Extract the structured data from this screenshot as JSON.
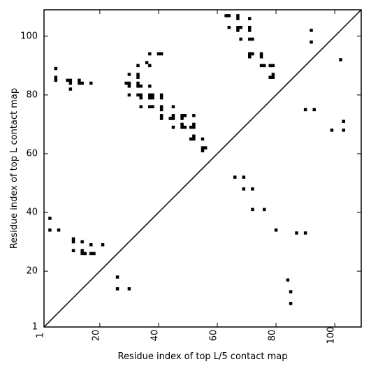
{
  "chart_data": {
    "type": "scatter",
    "title": "",
    "xlabel": "Residue index of top L/5 contact map",
    "ylabel": "Residue index of top L contact map",
    "xlim": [
      1,
      109
    ],
    "ylim": [
      1,
      109
    ],
    "x_ticks": [
      1,
      20,
      40,
      60,
      80,
      100
    ],
    "y_ticks": [
      1,
      20,
      40,
      60,
      80,
      100
    ],
    "x_tick_labels": [
      "1",
      "20",
      "40",
      "60",
      "80",
      "100"
    ],
    "y_tick_labels": [
      "1",
      "20",
      "40",
      "60",
      "80",
      "100"
    ],
    "grid": false,
    "marker": "square",
    "marker_color": "#000000",
    "diagonal_line": [
      [
        1,
        1
      ],
      [
        109,
        109
      ]
    ],
    "series": [
      {
        "label_region": "top_L_contacts_upper_left",
        "points": [
          [
            3,
            38
          ],
          [
            3,
            34
          ],
          [
            6,
            34
          ],
          [
            5,
            89
          ],
          [
            5,
            86
          ],
          [
            5,
            85
          ],
          [
            9,
            85
          ],
          [
            10,
            85
          ],
          [
            10,
            84
          ],
          [
            10,
            82
          ],
          [
            13,
            85
          ],
          [
            13,
            84
          ],
          [
            14,
            84
          ],
          [
            17,
            84
          ],
          [
            11,
            31
          ],
          [
            11,
            30
          ],
          [
            11,
            27
          ],
          [
            14,
            30
          ],
          [
            14,
            27
          ],
          [
            14,
            26
          ],
          [
            15,
            26
          ],
          [
            17,
            29
          ],
          [
            17,
            26
          ],
          [
            18,
            26
          ],
          [
            21,
            29
          ],
          [
            26,
            18
          ],
          [
            26,
            14
          ],
          [
            30,
            14
          ],
          [
            29,
            84
          ],
          [
            30,
            87
          ],
          [
            30,
            84
          ],
          [
            30,
            83
          ],
          [
            30,
            80
          ],
          [
            33,
            90
          ],
          [
            33,
            87
          ],
          [
            33,
            86
          ],
          [
            33,
            84
          ],
          [
            33,
            83
          ],
          [
            33,
            80
          ],
          [
            34,
            83
          ],
          [
            34,
            80
          ],
          [
            34,
            79
          ],
          [
            34,
            76
          ],
          [
            36,
            91
          ],
          [
            37,
            94
          ],
          [
            37,
            90
          ],
          [
            37,
            83
          ],
          [
            37,
            80
          ],
          [
            37,
            79
          ],
          [
            37,
            76
          ],
          [
            38,
            80
          ],
          [
            38,
            79
          ],
          [
            38,
            76
          ],
          [
            40,
            94
          ],
          [
            41,
            94
          ],
          [
            41,
            80
          ],
          [
            41,
            79
          ],
          [
            41,
            76
          ],
          [
            41,
            75
          ],
          [
            41,
            73
          ],
          [
            41,
            72
          ],
          [
            44,
            72
          ],
          [
            45,
            76
          ],
          [
            45,
            73
          ],
          [
            45,
            72
          ],
          [
            45,
            69
          ],
          [
            48,
            73
          ],
          [
            48,
            72
          ],
          [
            48,
            70
          ],
          [
            48,
            69
          ],
          [
            49,
            73
          ],
          [
            49,
            69
          ],
          [
            51,
            69
          ],
          [
            51,
            65
          ],
          [
            52,
            73
          ],
          [
            52,
            70
          ],
          [
            52,
            69
          ],
          [
            52,
            66
          ],
          [
            52,
            65
          ],
          [
            55,
            65
          ],
          [
            55,
            62
          ],
          [
            55,
            61
          ],
          [
            56,
            62
          ],
          [
            63,
            107
          ],
          [
            64,
            107
          ],
          [
            64,
            103
          ],
          [
            67,
            107
          ],
          [
            67,
            106
          ],
          [
            67,
            103
          ],
          [
            67,
            102
          ],
          [
            68,
            103
          ],
          [
            68,
            99
          ],
          [
            71,
            106
          ],
          [
            71,
            103
          ],
          [
            71,
            102
          ],
          [
            71,
            99
          ],
          [
            71,
            94
          ],
          [
            71,
            93
          ],
          [
            72,
            99
          ],
          [
            72,
            94
          ],
          [
            75,
            94
          ],
          [
            75,
            93
          ],
          [
            75,
            90
          ],
          [
            76,
            90
          ],
          [
            78,
            90
          ],
          [
            78,
            86
          ],
          [
            79,
            90
          ],
          [
            79,
            87
          ],
          [
            79,
            86
          ],
          [
            92,
            102
          ],
          [
            92,
            98
          ],
          [
            102,
            92
          ]
        ]
      },
      {
        "label_region": "top_L5_contacts_lower_right",
        "points": [
          [
            66,
            52
          ],
          [
            69,
            52
          ],
          [
            69,
            48
          ],
          [
            72,
            48
          ],
          [
            72,
            41
          ],
          [
            76,
            41
          ],
          [
            80,
            34
          ],
          [
            84,
            17
          ],
          [
            85,
            13
          ],
          [
            85,
            9
          ],
          [
            87,
            33
          ],
          [
            90,
            33
          ],
          [
            90,
            75
          ],
          [
            93,
            75
          ],
          [
            99,
            68
          ],
          [
            103,
            71
          ],
          [
            103,
            68
          ]
        ]
      }
    ]
  }
}
